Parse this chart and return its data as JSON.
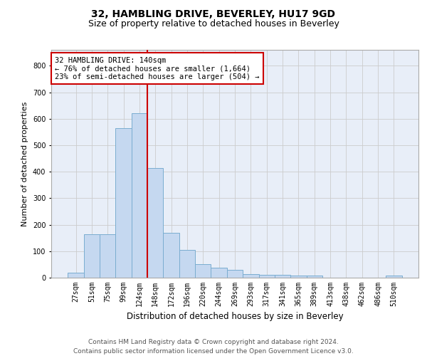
{
  "title1": "32, HAMBLING DRIVE, BEVERLEY, HU17 9GD",
  "title2": "Size of property relative to detached houses in Beverley",
  "xlabel": "Distribution of detached houses by size in Beverley",
  "ylabel": "Number of detached properties",
  "categories": [
    "27sqm",
    "51sqm",
    "75sqm",
    "99sqm",
    "124sqm",
    "148sqm",
    "172sqm",
    "196sqm",
    "220sqm",
    "244sqm",
    "269sqm",
    "293sqm",
    "317sqm",
    "341sqm",
    "365sqm",
    "389sqm",
    "413sqm",
    "438sqm",
    "462sqm",
    "486sqm",
    "510sqm"
  ],
  "values": [
    18,
    165,
    165,
    565,
    620,
    415,
    170,
    105,
    50,
    38,
    30,
    14,
    12,
    10,
    8,
    7,
    0,
    0,
    0,
    0,
    7
  ],
  "bar_color": "#c5d8f0",
  "bar_edgecolor": "#7aadd0",
  "vline_color": "#cc0000",
  "annotation_text": "32 HAMBLING DRIVE: 140sqm\n← 76% of detached houses are smaller (1,664)\n23% of semi-detached houses are larger (504) →",
  "annotation_box_color": "#ffffff",
  "annotation_box_edgecolor": "#cc0000",
  "ylim": [
    0,
    860
  ],
  "yticks": [
    0,
    100,
    200,
    300,
    400,
    500,
    600,
    700,
    800
  ],
  "grid_color": "#cccccc",
  "bg_color": "#e8eef8",
  "footer": "Contains HM Land Registry data © Crown copyright and database right 2024.\nContains public sector information licensed under the Open Government Licence v3.0.",
  "title1_fontsize": 10,
  "title2_fontsize": 9,
  "xlabel_fontsize": 8.5,
  "ylabel_fontsize": 8,
  "tick_fontsize": 7,
  "footer_fontsize": 6.5,
  "annot_fontsize": 7.5
}
